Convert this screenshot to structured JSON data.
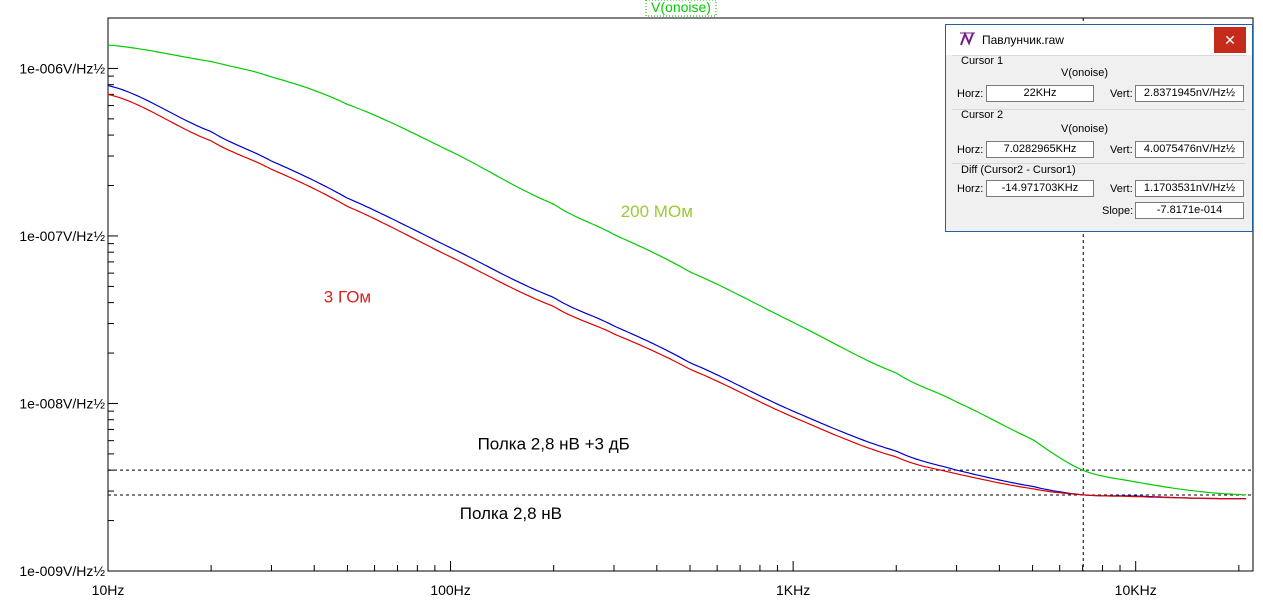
{
  "chart_data": {
    "type": "line",
    "title": "V(onoise)",
    "xscale": "log",
    "yscale": "log",
    "xlim": [
      10,
      22000
    ],
    "ylim": [
      1e-09,
      2e-06
    ],
    "x_ticks": [
      {
        "value": 10,
        "label": "10Hz"
      },
      {
        "value": 100,
        "label": "100Hz"
      },
      {
        "value": 1000,
        "label": "1KHz"
      },
      {
        "value": 10000,
        "label": "10KHz"
      }
    ],
    "y_ticks": [
      {
        "value": 1e-06,
        "label": "1e-006V/Hz½"
      },
      {
        "value": 1e-07,
        "label": "1e-007V/Hz½"
      },
      {
        "value": 1e-08,
        "label": "1e-008V/Hz½"
      },
      {
        "value": 1e-09,
        "label": "1e-009V/Hz½"
      }
    ],
    "series": [
      {
        "color": "#00cc00",
        "x": [
          10,
          20,
          30,
          50,
          100,
          200,
          300,
          500,
          1000,
          2000,
          3000,
          5000,
          7000,
          10000,
          15000,
          21000
        ],
        "y": [
          1.38e-06,
          1.1e-06,
          8.9e-07,
          6.1e-07,
          3.2e-07,
          1.55e-07,
          1.02e-07,
          6.1e-08,
          3.05e-08,
          1.52e-08,
          1.02e-08,
          6.1e-09,
          4e-09,
          3.4e-09,
          3e-09,
          2.85e-09
        ]
      },
      {
        "color": "#0000cc",
        "x": [
          10,
          20,
          30,
          50,
          100,
          200,
          300,
          500,
          1000,
          2000,
          3000,
          5000,
          7000,
          10000,
          15000,
          21000
        ],
        "y": [
          7.9e-07,
          4.2e-07,
          2.8e-07,
          1.68e-07,
          8.5e-08,
          4.3e-08,
          2.9e-08,
          1.75e-08,
          9e-09,
          5.2e-09,
          4e-09,
          3.2e-09,
          2.85e-09,
          2.8e-09,
          2.72e-09,
          2.7e-09
        ]
      },
      {
        "color": "#dd0000",
        "x": [
          10,
          20,
          30,
          50,
          100,
          200,
          300,
          500,
          1000,
          2000,
          3000,
          5000,
          7000,
          10000,
          15000,
          21000
        ],
        "y": [
          7e-07,
          3.7e-07,
          2.5e-07,
          1.5e-07,
          7.5e-08,
          3.8e-08,
          2.6e-08,
          1.6e-08,
          8.3e-09,
          4.8e-09,
          3.8e-09,
          3.1e-09,
          2.85e-09,
          2.78e-09,
          2.72e-09,
          2.7e-09
        ]
      }
    ],
    "reference_lines": [
      {
        "y": 4e-09
      },
      {
        "y": 2.84e-09
      }
    ],
    "cursor_line": {
      "x": 7028.2965
    },
    "annotations": [
      {
        "text": "200 МОм",
        "color": "#99cc33",
        "x": 400,
        "y": 1.3e-07
      },
      {
        "text": "3 ГОм",
        "color": "#dd2222",
        "x": 50,
        "y": 4e-08
      },
      {
        "text": "Полка 2,8 нВ +3 дБ",
        "color": "#000000",
        "x": 200,
        "y": 5.3e-09
      },
      {
        "text": "Полка 2,8 нВ",
        "color": "#000000",
        "x": 150,
        "y": 2.05e-09
      }
    ],
    "grid": false
  },
  "cursor_window": {
    "title": "Павлунчик.raw",
    "close_glyph": "✕",
    "cursor1": {
      "heading": "Cursor 1",
      "trace": "V(onoise)",
      "horz_label": "Horz:",
      "horz": "22KHz",
      "vert_label": "Vert:",
      "vert": "2.8371945nV/Hz½"
    },
    "cursor2": {
      "heading": "Cursor 2",
      "trace": "V(onoise)",
      "horz_label": "Horz:",
      "horz": "7.0282965KHz",
      "vert_label": "Vert:",
      "vert": "4.0075476nV/Hz½"
    },
    "diff": {
      "heading": "Diff (Cursor2 - Cursor1)",
      "horz_label": "Horz:",
      "horz": "-14.971703KHz",
      "vert_label": "Vert:",
      "vert": "1.1703531nV/Hz½",
      "slope_label": "Slope:",
      "slope": "-7.8171e-014"
    }
  }
}
